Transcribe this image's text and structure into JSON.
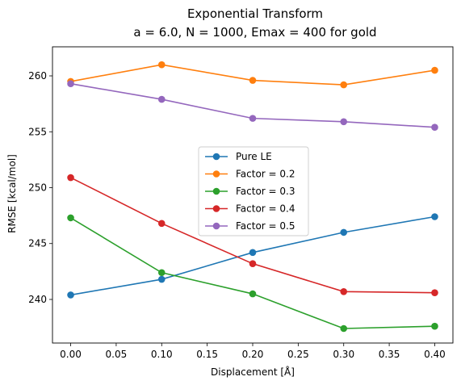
{
  "chart_data": {
    "type": "line",
    "title": "Exponential Transform",
    "subtitle": "a = 6.0, N = 1000, Emax = 400 for gold",
    "xlabel": "Displacement [Å]",
    "ylabel": "RMSE [kcal/mol]",
    "xlim": [
      -0.02,
      0.42
    ],
    "ylim": [
      236.1,
      262.6
    ],
    "x_ticks": [
      0.0,
      0.05,
      0.1,
      0.15,
      0.2,
      0.25,
      0.3,
      0.35,
      0.4
    ],
    "x_tick_labels": [
      "0.00",
      "0.05",
      "0.10",
      "0.15",
      "0.20",
      "0.25",
      "0.30",
      "0.35",
      "0.40"
    ],
    "y_ticks": [
      240,
      245,
      250,
      255,
      260
    ],
    "y_tick_labels": [
      "240",
      "245",
      "250",
      "255",
      "260"
    ],
    "x": [
      0.0,
      0.1,
      0.2,
      0.3,
      0.4
    ],
    "grid": false,
    "legend_position": "center",
    "series": [
      {
        "name": "Pure LE",
        "color": "#1f77b4",
        "values": [
          240.4,
          241.8,
          244.2,
          246.0,
          247.4
        ]
      },
      {
        "name": "Factor = 0.2",
        "color": "#ff7f0e",
        "values": [
          259.5,
          261.0,
          259.6,
          259.2,
          260.5
        ]
      },
      {
        "name": "Factor = 0.3",
        "color": "#2ca02c",
        "values": [
          247.3,
          242.4,
          240.5,
          237.4,
          237.6
        ]
      },
      {
        "name": "Factor = 0.4",
        "color": "#d62728",
        "values": [
          250.9,
          246.8,
          243.2,
          240.7,
          240.6
        ]
      },
      {
        "name": "Factor = 0.5",
        "color": "#9467bd",
        "values": [
          259.3,
          257.9,
          256.2,
          255.9,
          255.4
        ]
      }
    ]
  }
}
